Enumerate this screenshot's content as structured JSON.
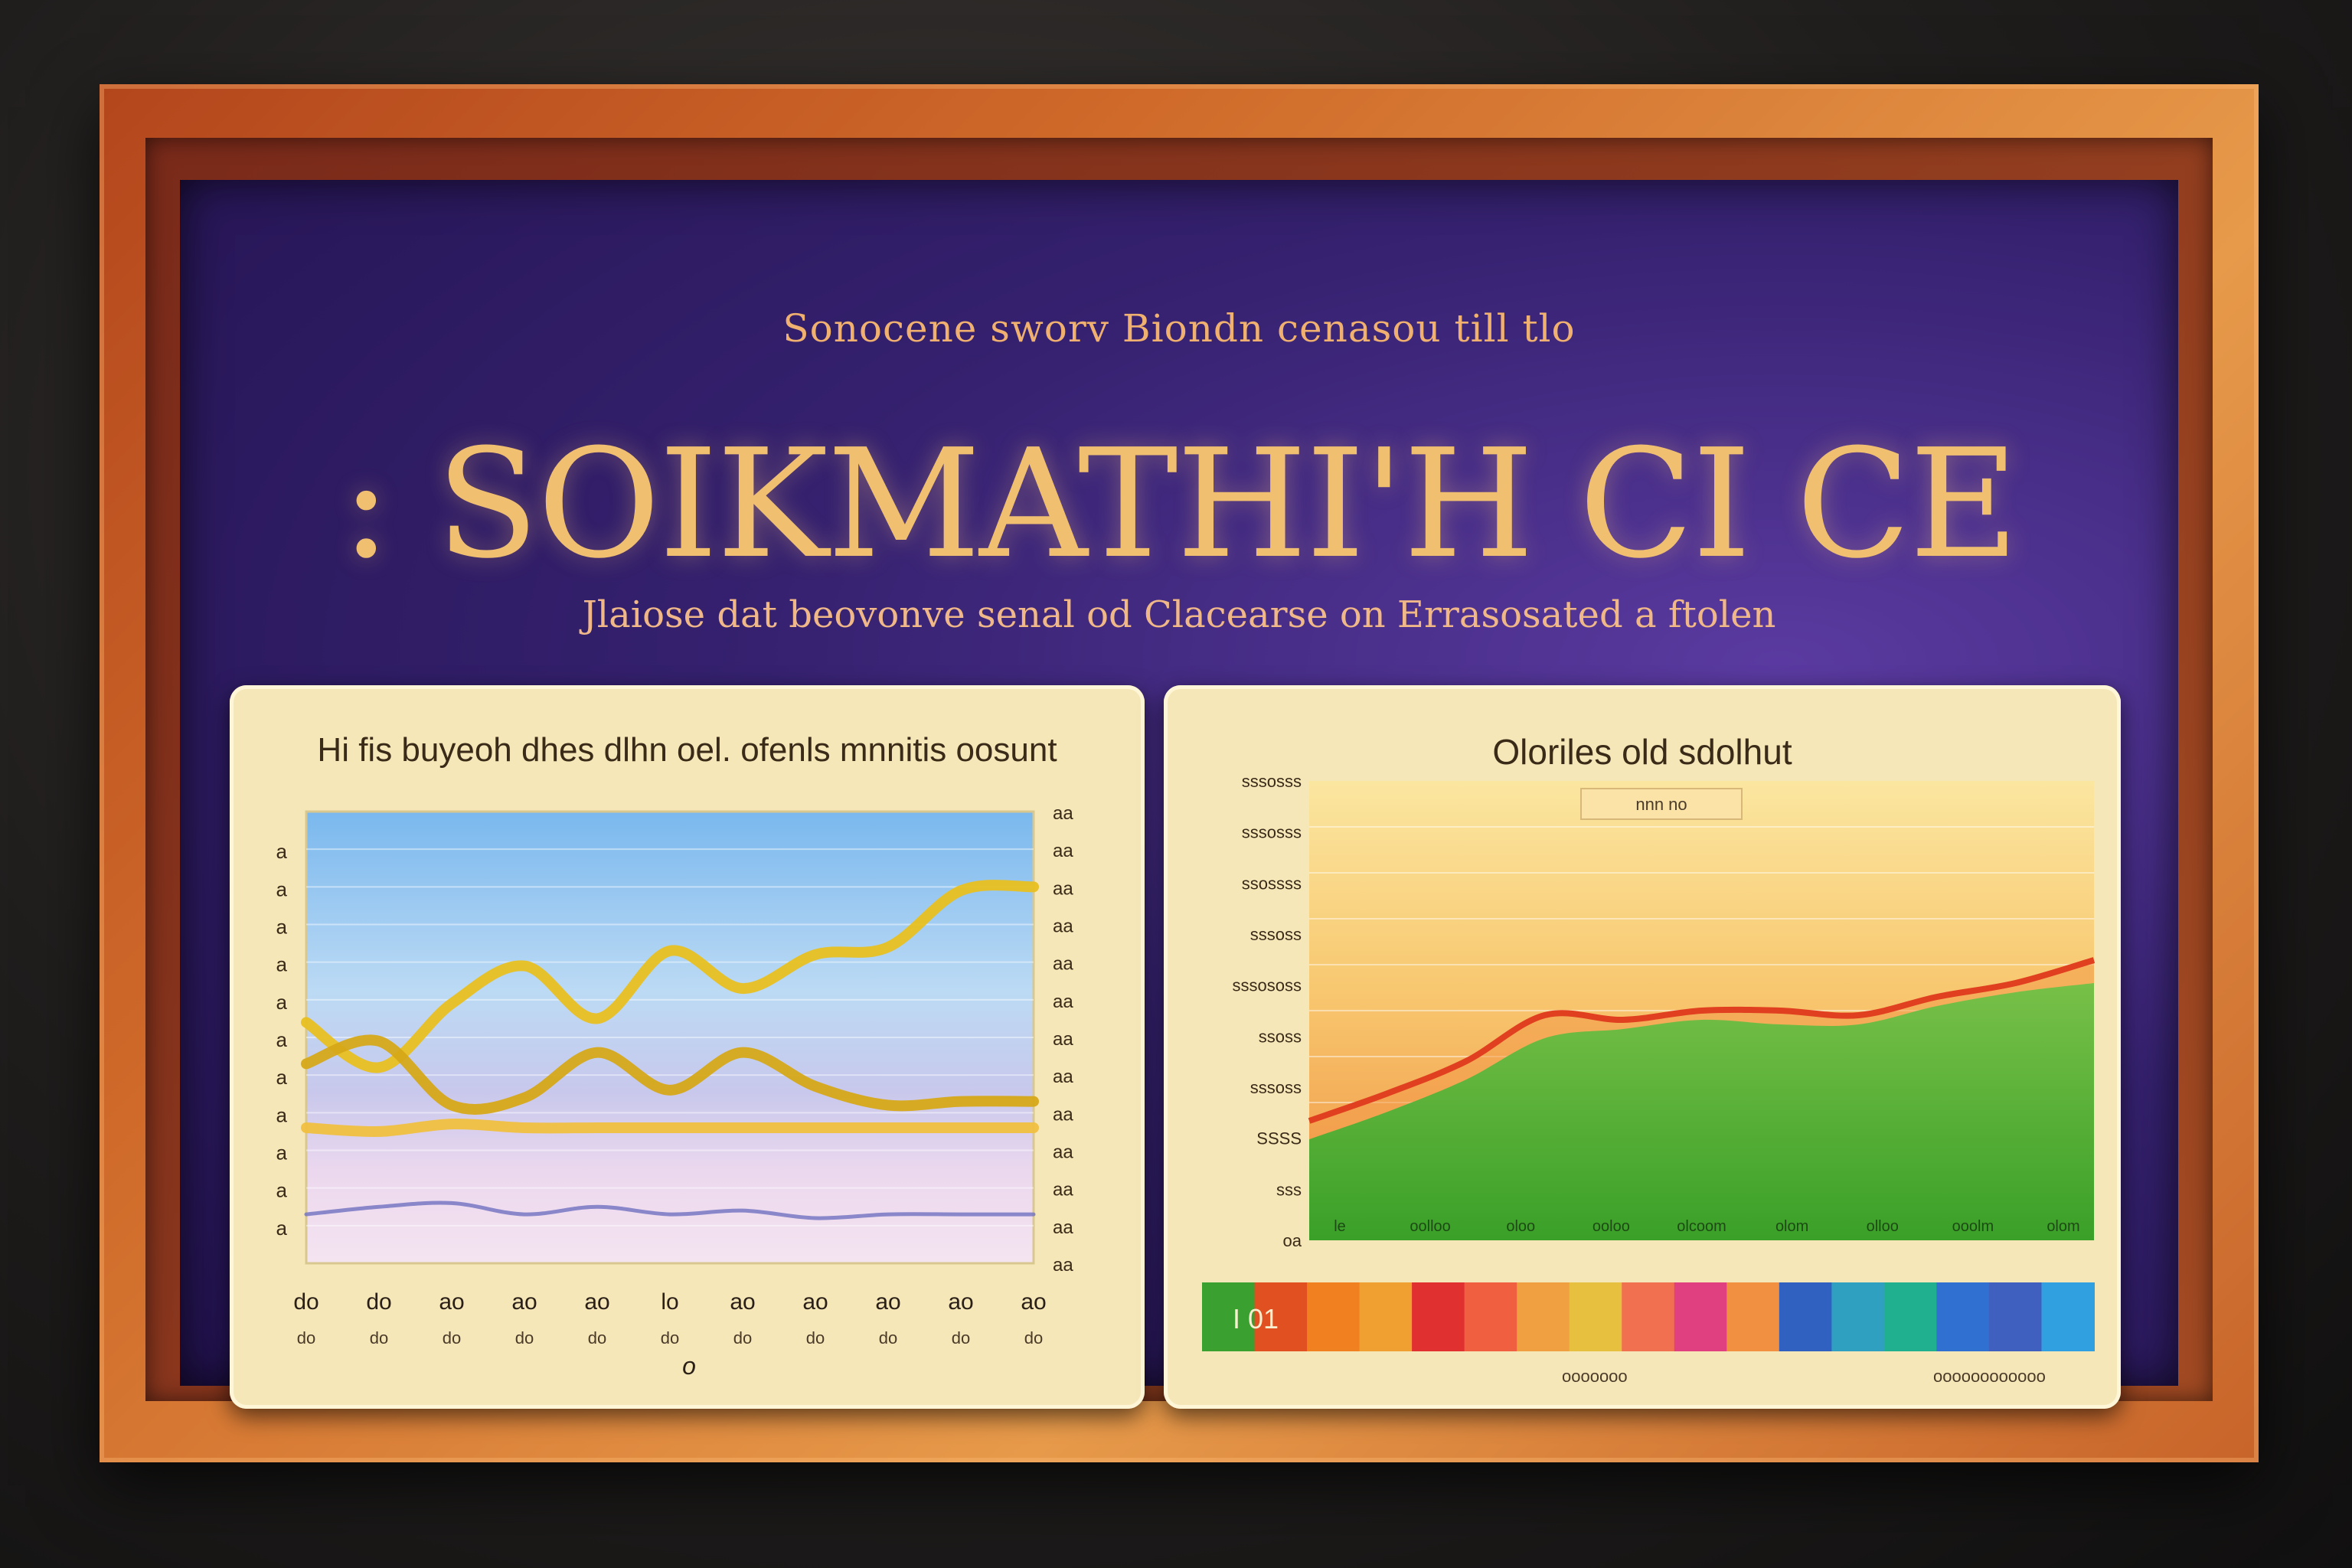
{
  "board": {
    "subtitle": "Sonocene sworv Biondn cenasou till tlo",
    "title": ": SOIKMATHI'H CI CE",
    "tagline": "Jlaiose dat beovonve senal od Clacearse on Errasosated a ftolen"
  },
  "chart_data": [
    {
      "type": "line",
      "title": "Hi fis buyeoh dhes dlhn oel. ofenls mnnitis oosunt",
      "x": [
        0,
        1,
        2,
        3,
        4,
        5,
        6,
        7,
        8,
        9,
        10
      ],
      "xticks": [
        "do",
        "do",
        "ao",
        "ao",
        "ao",
        "lo",
        "ao",
        "ao",
        "ao",
        "ao",
        "ao"
      ],
      "x_sublabels": [
        "do",
        "do",
        "do",
        "do",
        "do",
        "do",
        "do",
        "do",
        "do",
        "do",
        "do"
      ],
      "y_left_ticks": [
        "a",
        "a",
        "a",
        "a",
        "a",
        "a",
        "a",
        "a",
        "a",
        "a",
        "a"
      ],
      "y_right_ticks": [
        "aa",
        "aa",
        "aa",
        "aa",
        "aa",
        "aa",
        "aa",
        "aa",
        "aa",
        "aa",
        "aa",
        "aa",
        "aa"
      ],
      "axis_note": "o",
      "ylim": [
        0,
        12
      ],
      "series": [
        {
          "color": "#e8c020",
          "values": [
            6.4,
            5.2,
            6.9,
            7.9,
            6.5,
            8.3,
            7.3,
            8.2,
            8.4,
            9.9,
            10.0
          ]
        },
        {
          "color": "#d6a818",
          "values": [
            5.3,
            5.9,
            4.2,
            4.4,
            5.6,
            4.6,
            5.6,
            4.7,
            4.2,
            4.3,
            4.3
          ]
        },
        {
          "color": "#f0c040",
          "values": [
            3.6,
            3.5,
            3.7,
            3.6,
            3.6,
            3.6,
            3.6,
            3.6,
            3.6,
            3.6,
            3.6
          ]
        },
        {
          "color": "#7070c0",
          "values": [
            1.3,
            1.5,
            1.6,
            1.3,
            1.5,
            1.3,
            1.4,
            1.2,
            1.3,
            1.3,
            1.3
          ]
        }
      ]
    },
    {
      "type": "area",
      "title": "Oloriles old sdolhut",
      "legend_box": "nnn no",
      "x": [
        0,
        1,
        2,
        3,
        4,
        5,
        6,
        7,
        8,
        9,
        10
      ],
      "xticks": [
        "le",
        "oolloo",
        "oloo",
        "ooloo",
        "olcoom",
        "olom",
        "olloo",
        "ooolm",
        "olom"
      ],
      "yticks": [
        "sssosss",
        "sssosss",
        "ssossss",
        "sssoss",
        "sssososs",
        "ssoss",
        "sssoss",
        "SSSS",
        "sss",
        "oa"
      ],
      "ylim": [
        0,
        10
      ],
      "series": [
        {
          "color": "#e04020",
          "values": [
            2.6,
            3.2,
            3.9,
            4.9,
            4.8,
            5.0,
            5.0,
            4.9,
            5.3,
            5.6,
            6.1
          ]
        },
        {
          "color": "#4cb030",
          "values": [
            2.2,
            2.8,
            3.5,
            4.4,
            4.6,
            4.8,
            4.7,
            4.7,
            5.1,
            5.4,
            5.6
          ]
        }
      ],
      "color_bar": {
        "label": "I 01",
        "colors": [
          "#3aa030",
          "#e05020",
          "#f08020",
          "#f0a030",
          "#e03030",
          "#f06040",
          "#f0a040",
          "#e8c040",
          "#f07050",
          "#e04080",
          "#f09040",
          "#3060c0",
          "#30a0c0",
          "#20b090",
          "#3070d0",
          "#4060c0",
          "#30a0e0"
        ],
        "caption_left": "ooooooo",
        "caption_right": "oooooooooooo"
      }
    }
  ]
}
